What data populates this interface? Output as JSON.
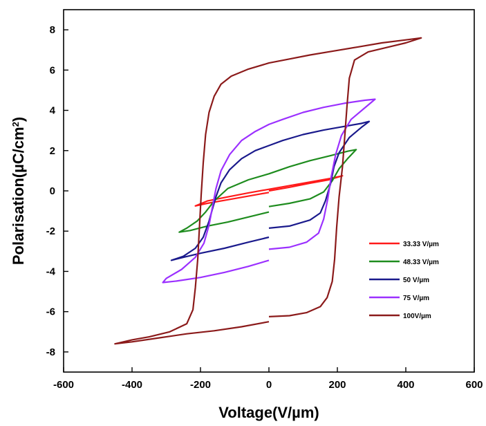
{
  "chart_data": {
    "type": "line",
    "xlabel": "Voltage(V/µm)",
    "ylabel_main": "Polarisation(µC/cm",
    "ylabel_sup": "2",
    "ylabel_close": ")",
    "xlim": [
      -600,
      600
    ],
    "ylim": [
      -9,
      9
    ],
    "xticks": [
      -600,
      -400,
      -200,
      0,
      200,
      400,
      600
    ],
    "yticks": [
      -8,
      -6,
      -4,
      -2,
      0,
      2,
      4,
      6,
      8
    ],
    "legend_position": "lower-right",
    "grid": false,
    "series": [
      {
        "name": "33.33 V/µm",
        "color": "#ff1a1a",
        "points": [
          [
            0,
            0
          ],
          [
            60,
            0.18
          ],
          [
            120,
            0.38
          ],
          [
            175,
            0.55
          ],
          [
            215,
            0.75
          ],
          [
            180,
            0.62
          ],
          [
            120,
            0.44
          ],
          [
            60,
            0.26
          ],
          [
            0,
            0.08
          ],
          [
            -60,
            -0.1
          ],
          [
            -120,
            -0.3
          ],
          [
            -180,
            -0.5
          ],
          [
            -215,
            -0.75
          ],
          [
            -180,
            -0.62
          ],
          [
            -120,
            -0.44
          ],
          [
            -60,
            -0.26
          ],
          [
            0,
            -0.08
          ]
        ]
      },
      {
        "name": "48.33 V/µm",
        "color": "#1e8c1e",
        "points": [
          [
            0,
            -0.78
          ],
          [
            60,
            -0.62
          ],
          [
            120,
            -0.4
          ],
          [
            160,
            -0.05
          ],
          [
            185,
            0.5
          ],
          [
            205,
            1.1
          ],
          [
            230,
            1.6
          ],
          [
            255,
            2.05
          ],
          [
            230,
            1.97
          ],
          [
            180,
            1.75
          ],
          [
            120,
            1.5
          ],
          [
            60,
            1.2
          ],
          [
            0,
            0.85
          ],
          [
            -60,
            0.55
          ],
          [
            -120,
            0.12
          ],
          [
            -160,
            -0.5
          ],
          [
            -185,
            -1.05
          ],
          [
            -210,
            -1.5
          ],
          [
            -240,
            -1.85
          ],
          [
            -262,
            -2.05
          ],
          [
            -230,
            -1.97
          ],
          [
            -180,
            -1.75
          ],
          [
            -120,
            -1.55
          ],
          [
            -60,
            -1.3
          ],
          [
            0,
            -1.05
          ]
        ]
      },
      {
        "name": "50 V/µm",
        "color": "#1a1a8c",
        "points": [
          [
            0,
            -1.85
          ],
          [
            60,
            -1.75
          ],
          [
            120,
            -1.45
          ],
          [
            150,
            -1.1
          ],
          [
            165,
            -0.5
          ],
          [
            180,
            0.35
          ],
          [
            190,
            1.2
          ],
          [
            205,
            1.9
          ],
          [
            235,
            2.65
          ],
          [
            270,
            3.15
          ],
          [
            293,
            3.45
          ],
          [
            270,
            3.35
          ],
          [
            220,
            3.2
          ],
          [
            160,
            3.02
          ],
          [
            100,
            2.8
          ],
          [
            40,
            2.5
          ],
          [
            0,
            2.25
          ],
          [
            -40,
            2.0
          ],
          [
            -80,
            1.6
          ],
          [
            -115,
            1.05
          ],
          [
            -140,
            0.4
          ],
          [
            -155,
            -0.3
          ],
          [
            -165,
            -0.9
          ],
          [
            -175,
            -1.5
          ],
          [
            -192,
            -2.3
          ],
          [
            -215,
            -2.85
          ],
          [
            -250,
            -3.25
          ],
          [
            -285,
            -3.45
          ],
          [
            -250,
            -3.3
          ],
          [
            -200,
            -3.1
          ],
          [
            -130,
            -2.85
          ],
          [
            -60,
            -2.55
          ],
          [
            0,
            -2.3
          ]
        ]
      },
      {
        "name": "75 V/µm",
        "color": "#9b30ff",
        "points": [
          [
            0,
            -2.9
          ],
          [
            60,
            -2.8
          ],
          [
            110,
            -2.55
          ],
          [
            145,
            -2.1
          ],
          [
            160,
            -1.4
          ],
          [
            172,
            -0.4
          ],
          [
            182,
            0.7
          ],
          [
            195,
            1.8
          ],
          [
            212,
            2.75
          ],
          [
            240,
            3.55
          ],
          [
            275,
            4.05
          ],
          [
            310,
            4.55
          ],
          [
            280,
            4.5
          ],
          [
            220,
            4.35
          ],
          [
            160,
            4.15
          ],
          [
            100,
            3.9
          ],
          [
            40,
            3.55
          ],
          [
            0,
            3.3
          ],
          [
            -40,
            2.95
          ],
          [
            -80,
            2.5
          ],
          [
            -115,
            1.8
          ],
          [
            -140,
            1.0
          ],
          [
            -155,
            0.1
          ],
          [
            -165,
            -0.8
          ],
          [
            -175,
            -1.7
          ],
          [
            -190,
            -2.6
          ],
          [
            -215,
            -3.3
          ],
          [
            -255,
            -3.9
          ],
          [
            -300,
            -4.35
          ],
          [
            -310,
            -4.55
          ],
          [
            -270,
            -4.48
          ],
          [
            -200,
            -4.3
          ],
          [
            -130,
            -4.05
          ],
          [
            -60,
            -3.75
          ],
          [
            0,
            -3.45
          ]
        ]
      },
      {
        "name": "100V/µm",
        "color": "#8b1a1a",
        "points": [
          [
            0,
            -6.25
          ],
          [
            60,
            -6.2
          ],
          [
            110,
            -6.05
          ],
          [
            150,
            -5.75
          ],
          [
            170,
            -5.3
          ],
          [
            185,
            -4.5
          ],
          [
            192,
            -3.4
          ],
          [
            198,
            -1.8
          ],
          [
            205,
            -0.3
          ],
          [
            215,
            1.2
          ],
          [
            222,
            2.8
          ],
          [
            228,
            4.2
          ],
          [
            235,
            5.6
          ],
          [
            250,
            6.5
          ],
          [
            290,
            6.9
          ],
          [
            350,
            7.15
          ],
          [
            400,
            7.35
          ],
          [
            445,
            7.6
          ],
          [
            400,
            7.5
          ],
          [
            330,
            7.35
          ],
          [
            260,
            7.15
          ],
          [
            190,
            6.95
          ],
          [
            120,
            6.75
          ],
          [
            60,
            6.55
          ],
          [
            0,
            6.35
          ],
          [
            -60,
            6.05
          ],
          [
            -110,
            5.7
          ],
          [
            -140,
            5.3
          ],
          [
            -160,
            4.7
          ],
          [
            -175,
            3.9
          ],
          [
            -185,
            2.8
          ],
          [
            -192,
            1.4
          ],
          [
            -198,
            -0.2
          ],
          [
            -203,
            -1.8
          ],
          [
            -208,
            -3.4
          ],
          [
            -215,
            -4.8
          ],
          [
            -222,
            -5.9
          ],
          [
            -240,
            -6.6
          ],
          [
            -290,
            -7.0
          ],
          [
            -350,
            -7.25
          ],
          [
            -400,
            -7.4
          ],
          [
            -450,
            -7.6
          ],
          [
            -400,
            -7.5
          ],
          [
            -320,
            -7.3
          ],
          [
            -240,
            -7.1
          ],
          [
            -160,
            -6.95
          ],
          [
            -80,
            -6.75
          ],
          [
            0,
            -6.5
          ]
        ]
      }
    ]
  }
}
